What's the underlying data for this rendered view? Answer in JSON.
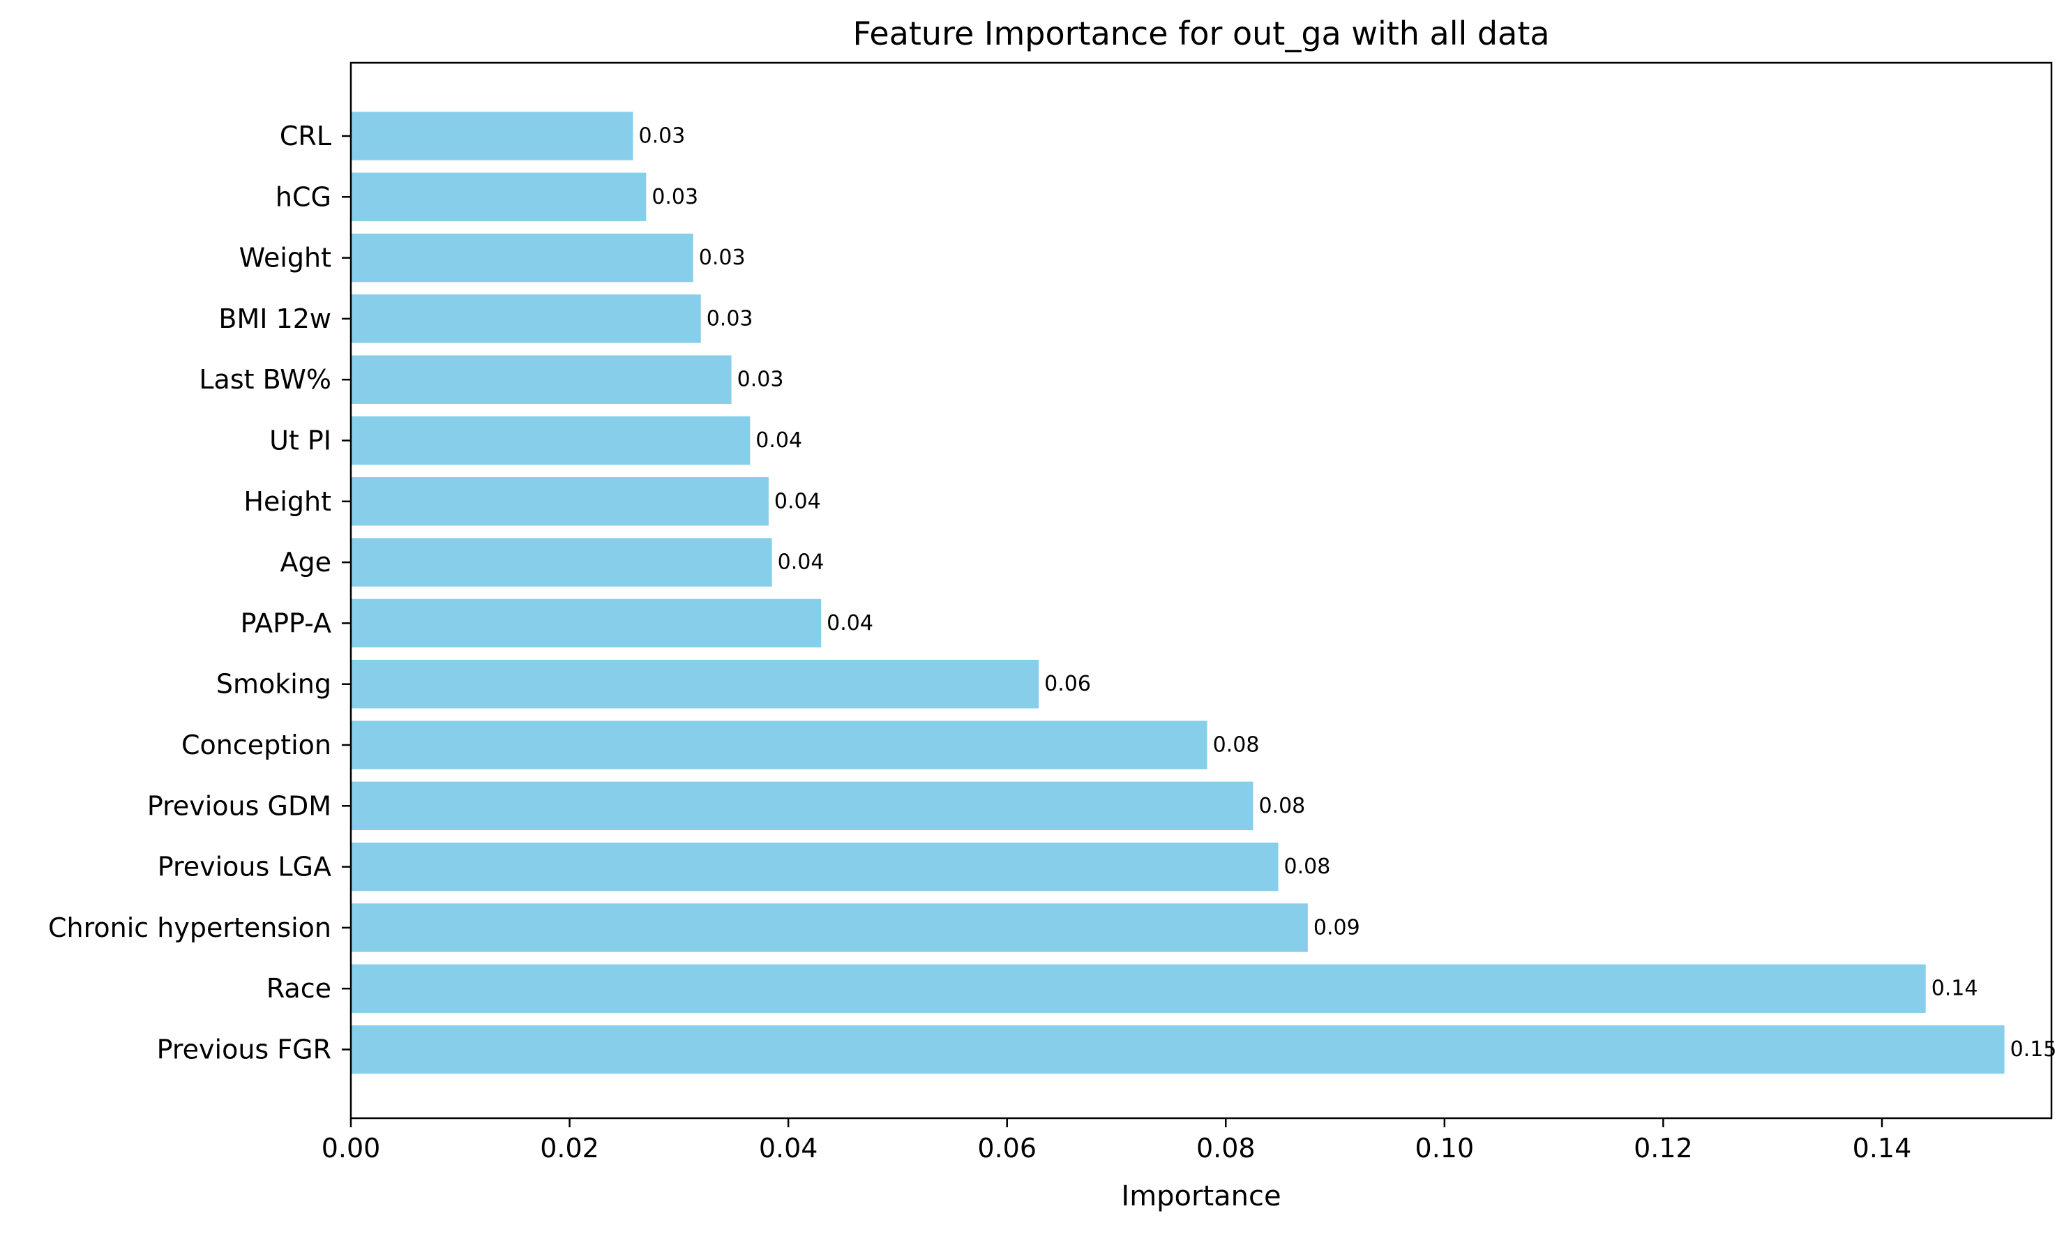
{
  "chart_data": {
    "type": "bar",
    "orientation": "horizontal",
    "title": "Feature Importance for out_ga with all data",
    "xlabel": "Importance",
    "ylabel": "",
    "xlim": [
      0,
      0.1555
    ],
    "x_ticks": [
      0.0,
      0.02,
      0.04,
      0.06,
      0.08,
      0.1,
      0.12,
      0.14
    ],
    "x_tick_labels": [
      "0.00",
      "0.02",
      "0.04",
      "0.06",
      "0.08",
      "0.10",
      "0.12",
      "0.14"
    ],
    "grid": false,
    "bar_color": "#87ceeb",
    "categories": [
      "CRL",
      "hCG",
      "Weight",
      "BMI 12w",
      "Last BW%",
      "Ut PI",
      "Height",
      "Age",
      "PAPP-A",
      "Smoking",
      "Conception",
      "Previous GDM",
      "Previous LGA",
      "Chronic hypertension",
      "Race",
      "Previous FGR"
    ],
    "values": [
      0.0258,
      0.027,
      0.0313,
      0.032,
      0.0348,
      0.0365,
      0.0382,
      0.0385,
      0.043,
      0.0629,
      0.0783,
      0.0825,
      0.0848,
      0.0875,
      0.144,
      0.1512
    ],
    "value_labels": [
      "0.03",
      "0.03",
      "0.03",
      "0.03",
      "0.03",
      "0.04",
      "0.04",
      "0.04",
      "0.04",
      "0.06",
      "0.08",
      "0.08",
      "0.08",
      "0.09",
      "0.14",
      "0.15"
    ]
  }
}
